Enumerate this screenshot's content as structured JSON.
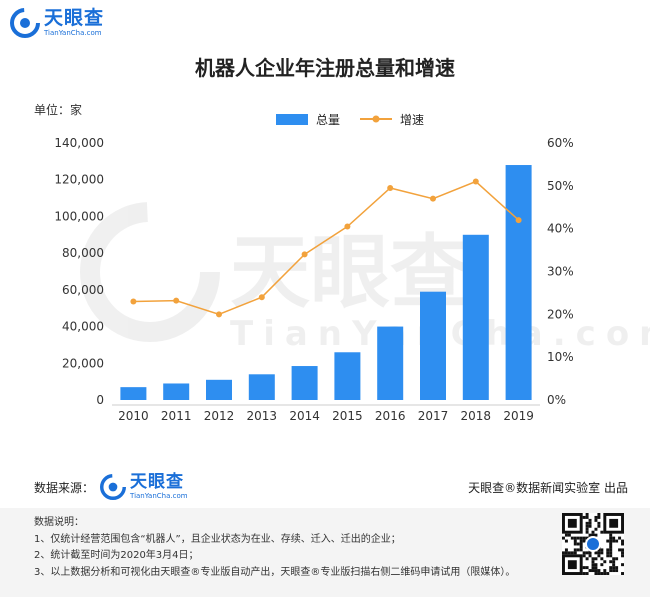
{
  "brand": {
    "name": "天眼查",
    "domain": "TianYanCha.com",
    "watermark_name": "天眼查",
    "watermark_domain": "TianYanCha.com"
  },
  "title": "机器人企业年注册总量和增速",
  "unit": "单位：家",
  "chart_data": {
    "type": "bar",
    "categories": [
      "2010",
      "2011",
      "2012",
      "2013",
      "2014",
      "2015",
      "2016",
      "2017",
      "2018",
      "2019"
    ],
    "series": [
      {
        "name": "总量",
        "type": "bar",
        "axis": "left",
        "color": "#2e8ef0",
        "values": [
          7000,
          9000,
          11000,
          14000,
          18500,
          26000,
          40000,
          59000,
          90000,
          128000
        ]
      },
      {
        "name": "增速",
        "type": "line",
        "axis": "right",
        "color": "#f2a23c",
        "values": [
          23,
          23.2,
          20,
          24,
          34,
          40.5,
          49.5,
          47,
          51,
          42
        ]
      }
    ],
    "y_left": {
      "min": 0,
      "max": 140000,
      "ticks": [
        "0",
        "20,000",
        "40,000",
        "60,000",
        "80,000",
        "100,000",
        "120,000",
        "140,000"
      ]
    },
    "y_right": {
      "min": 0,
      "max": 60,
      "ticks": [
        "0%",
        "10%",
        "20%",
        "30%",
        "40%",
        "50%",
        "60%"
      ]
    },
    "legend_position": "top-center",
    "grid": false
  },
  "footer": {
    "source_label": "数据来源：",
    "credit": "天眼查®数据新闻实验室 出品",
    "notes_title": "数据说明：",
    "notes": [
      "1、仅统计经营范围包含“机器人”，且企业状态为在业、存续、迁入、迁出的企业；",
      "2、统计截至时间为2020年3月4日；",
      "3、以上数据分析和可视化由天眼查®专业版自动产出，天眼查®专业版扫描右侧二维码申请试用（限媒体）。"
    ]
  }
}
